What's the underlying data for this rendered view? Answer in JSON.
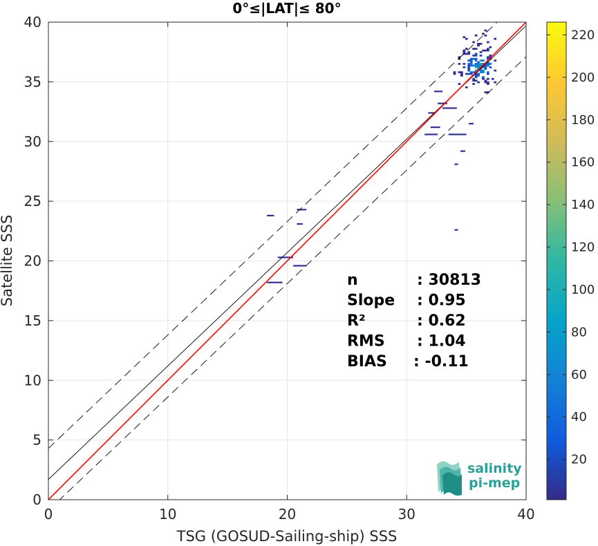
{
  "chart_data": {
    "type": "heatmap",
    "title": "0°≤|LAT|≤ 80°",
    "xlabel": "TSG (GOSUD-Sailing-ship) SSS",
    "ylabel": "Satellite SSS",
    "xlim": [
      0,
      40
    ],
    "ylim": [
      0,
      40
    ],
    "xticks": [
      "0",
      "10",
      "20",
      "30",
      "40"
    ],
    "yticks": [
      "0",
      "5",
      "10",
      "15",
      "20",
      "25",
      "30",
      "35",
      "40"
    ],
    "grid": true,
    "lines": [
      {
        "name": "",
        "style": "solid",
        "color": "#000000",
        "intercept": 1.7,
        "slope": 0.95
      },
      {
        "name": "",
        "style": "dashed",
        "color": "#000000",
        "intercept": 4.3,
        "slope": 0.95
      },
      {
        "name": "",
        "style": "dashed",
        "color": "#000000",
        "intercept": -0.9,
        "slope": 0.95
      },
      {
        "name": "",
        "style": "solid",
        "color": "#ff0000",
        "intercept": 0,
        "slope": 1
      }
    ],
    "stats": [
      {
        "label": "n",
        "value": ": 30813"
      },
      {
        "label": "Slope",
        "value": ": 0.95"
      },
      {
        "label": "R²",
        "value": ": 0.62"
      },
      {
        "label": "RMS",
        "value": ": 1.04"
      },
      {
        "label": "BIAS",
        "value": ": -0.11"
      }
    ],
    "colorbar": {
      "min": 1,
      "max": 226,
      "ticks": [
        "20",
        "40",
        "60",
        "80",
        "100",
        "120",
        "140",
        "160",
        "180",
        "200",
        "220"
      ],
      "colormap": "parula"
    },
    "cluster": {
      "x_range": [
        33.5,
        37.5
      ],
      "y_range": [
        33.5,
        39.5
      ],
      "peak_x": 36.0,
      "peak_y": 36.2
    },
    "points": [
      {
        "x": 18.3,
        "x2": 18.9,
        "y": 23.8
      },
      {
        "x": 20.8,
        "x2": 21.6,
        "y": 24.3
      },
      {
        "x": 20.8,
        "x2": 21.3,
        "y": 23.1
      },
      {
        "x": 19.2,
        "x2": 20.5,
        "y": 20.3
      },
      {
        "x": 20.5,
        "x2": 21.6,
        "y": 19.6
      },
      {
        "x": 18.3,
        "x2": 19.6,
        "y": 18.2
      },
      {
        "x": 34.0,
        "x2": 34.3,
        "y": 28.1
      },
      {
        "x": 34.0,
        "x2": 34.3,
        "y": 22.6
      },
      {
        "x": 34.5,
        "x2": 34.9,
        "y": 29.2
      },
      {
        "x": 31.5,
        "x2": 32.6,
        "y": 30.6
      },
      {
        "x": 33.5,
        "x2": 35.0,
        "y": 30.6
      },
      {
        "x": 32.0,
        "x2": 32.8,
        "y": 31.2
      },
      {
        "x": 32.6,
        "x2": 33.4,
        "y": 33.2
      },
      {
        "x": 33.0,
        "x2": 34.2,
        "y": 32.8
      },
      {
        "x": 31.8,
        "x2": 32.3,
        "y": 32.4
      },
      {
        "x": 32.3,
        "x2": 33.0,
        "y": 34.2
      },
      {
        "x": 35.2,
        "x2": 35.6,
        "y": 31.5
      }
    ],
    "watermark": [
      "salinity",
      "pi-mep"
    ]
  }
}
